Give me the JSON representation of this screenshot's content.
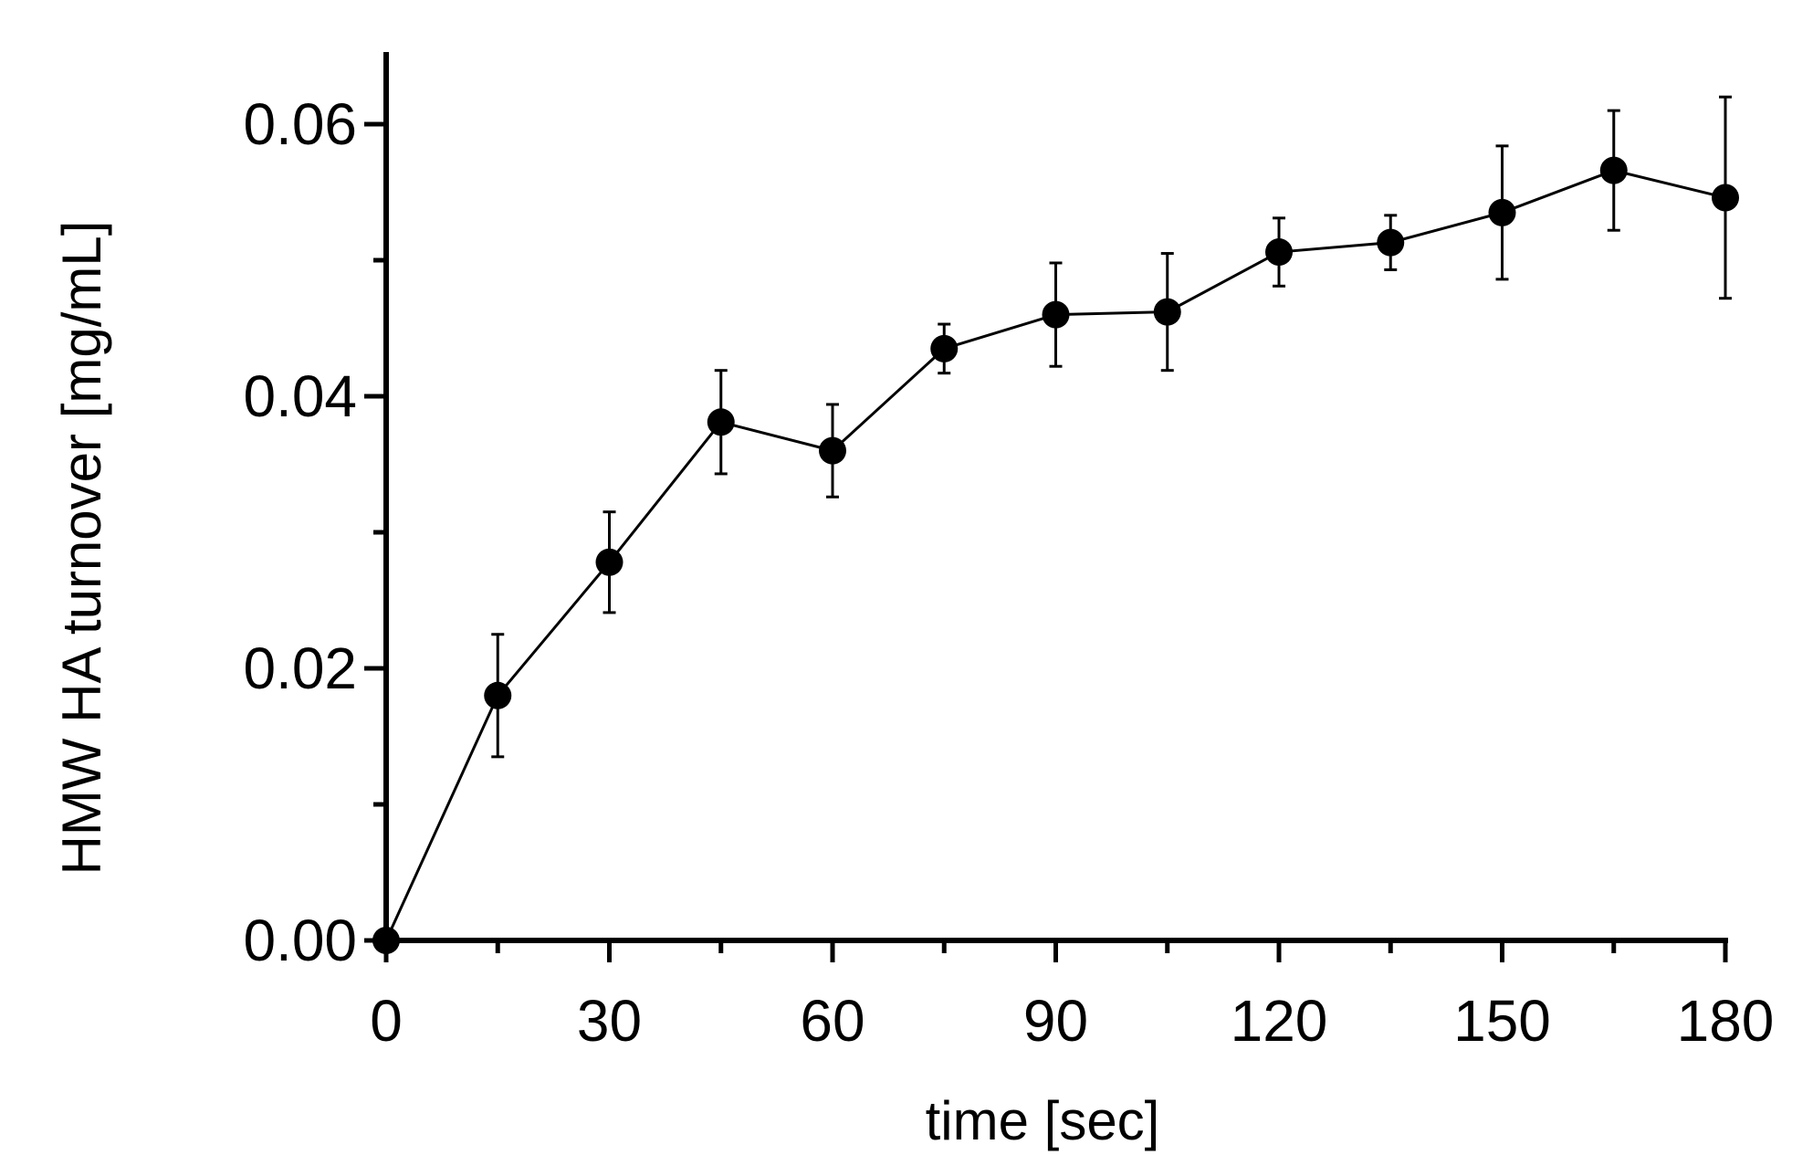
{
  "chart_data": {
    "type": "line",
    "title": "",
    "xlabel": "time [sec]",
    "ylabel": "HMW HA turnover  [mg/mL]",
    "xlim": [
      0,
      180
    ],
    "ylim": [
      0,
      0.065
    ],
    "x_major_ticks": [
      0,
      30,
      60,
      90,
      120,
      150,
      180
    ],
    "x_tick_labels": [
      "0",
      "30",
      "60",
      "90",
      "120",
      "150",
      "180"
    ],
    "x_minor_ticks": [
      15,
      45,
      75,
      105,
      135,
      165
    ],
    "y_major_ticks": [
      0,
      0.02,
      0.04,
      0.06
    ],
    "y_tick_labels": [
      "0.00",
      "0.02",
      "0.04",
      "0.06"
    ],
    "y_minor_ticks": [
      0.01,
      0.03,
      0.05
    ],
    "grid": false,
    "legend": "none",
    "series": [
      {
        "name": "HMW HA turnover",
        "color": "#000000",
        "marker": "filled-circle",
        "x": [
          0,
          15,
          30,
          45,
          60,
          75,
          90,
          105,
          120,
          135,
          150,
          165,
          180
        ],
        "y": [
          0.0,
          0.018,
          0.0278,
          0.0381,
          0.036,
          0.0435,
          0.046,
          0.0462,
          0.0506,
          0.0513,
          0.0535,
          0.0566,
          0.0546
        ],
        "error": [
          0.0,
          0.0045,
          0.0037,
          0.0038,
          0.0034,
          0.0018,
          0.0038,
          0.0043,
          0.0025,
          0.002,
          0.0049,
          0.0044,
          0.0074
        ]
      }
    ]
  }
}
